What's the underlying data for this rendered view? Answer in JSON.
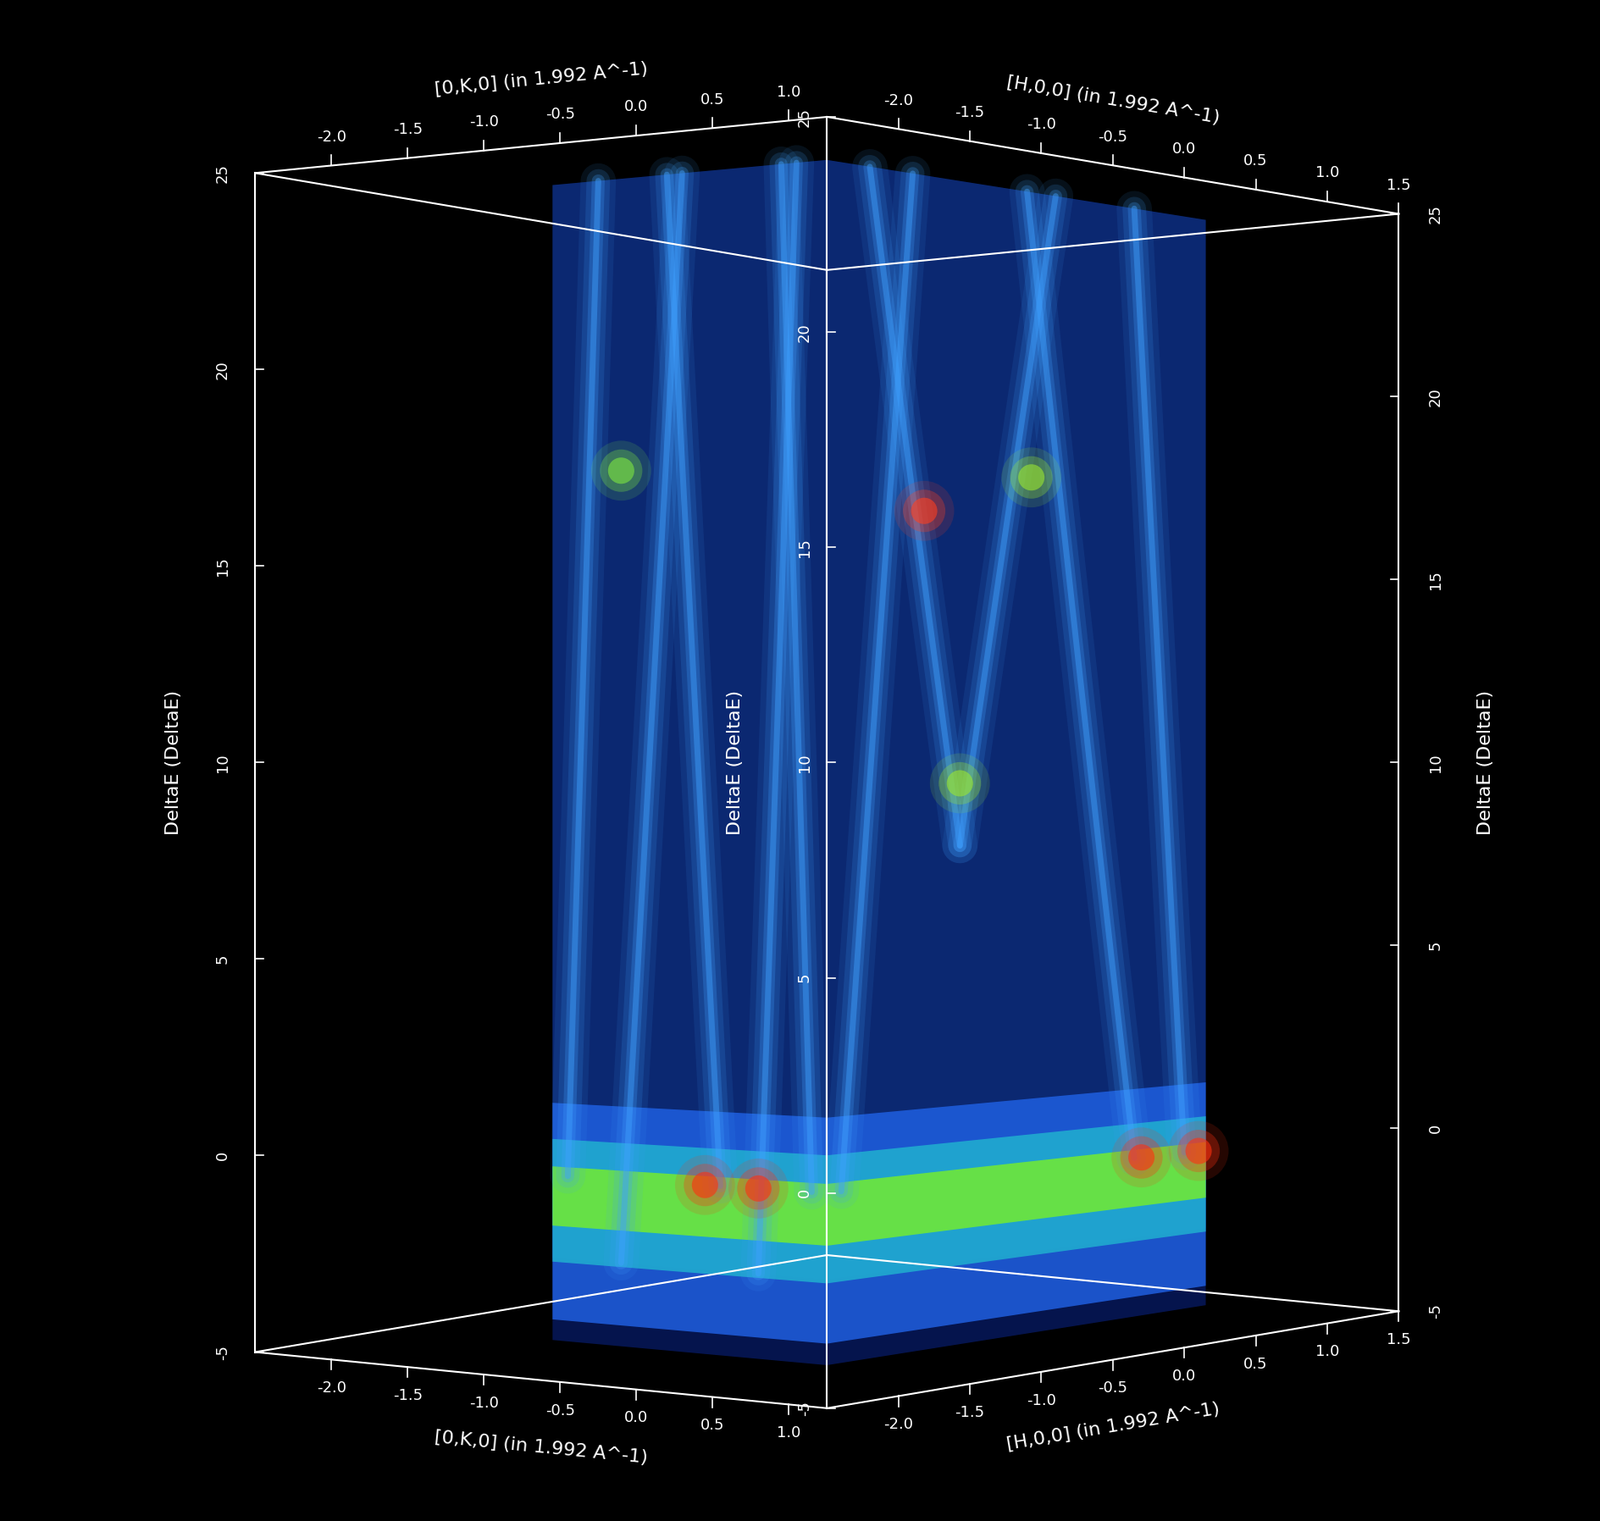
{
  "chart_data": {
    "type": "volume_3d",
    "xlabel": "[0,K,0] (in 1.992 A^-1)",
    "ylabel": "[H,0,0] (in 1.992 A^-1)",
    "zlabel": "DeltaE (DeltaE)",
    "xlim": [
      -2.5,
      1.25
    ],
    "xticks": [
      -2.0,
      -1.5,
      -1.0,
      -0.5,
      0.0,
      0.5,
      1.0
    ],
    "ylim": [
      -2.5,
      1.5
    ],
    "yticks": [
      -2.0,
      -1.5,
      -1.0,
      -0.5,
      0.0,
      0.5,
      1.0,
      1.5
    ],
    "zlim": [
      -5,
      25
    ],
    "zticks": [
      -5,
      0,
      5,
      10,
      15,
      20,
      25
    ],
    "data_extent": {
      "K": [
        -0.55,
        1.25
      ],
      "H": [
        -2.5,
        0.15
      ],
      "energy": [
        -4,
        24
      ]
    },
    "elastic_line": {
      "energy": 0,
      "width": 3.5
    },
    "dispersions": [
      {
        "face": "K",
        "points": [
          [
            -0.45,
            0
          ],
          [
            -0.25,
            24
          ]
        ]
      },
      {
        "face": "K",
        "points": [
          [
            -0.1,
            -2
          ],
          [
            0.3,
            24
          ]
        ]
      },
      {
        "face": "K",
        "points": [
          [
            0.55,
            0
          ],
          [
            0.2,
            24
          ]
        ]
      },
      {
        "face": "K",
        "points": [
          [
            0.8,
            -2
          ],
          [
            1.05,
            24
          ]
        ]
      },
      {
        "face": "K",
        "points": [
          [
            1.15,
            0
          ],
          [
            0.95,
            24
          ]
        ]
      },
      {
        "face": "H",
        "points": [
          [
            -1.57,
            8
          ],
          [
            -2.2,
            24
          ]
        ]
      },
      {
        "face": "H",
        "points": [
          [
            -1.57,
            8
          ],
          [
            -0.9,
            24
          ]
        ]
      },
      {
        "face": "H",
        "points": [
          [
            -0.35,
            0
          ],
          [
            -1.1,
            24
          ]
        ]
      },
      {
        "face": "H",
        "points": [
          [
            -2.4,
            0
          ],
          [
            -1.9,
            24
          ]
        ]
      },
      {
        "face": "H",
        "points": [
          [
            0.0,
            0
          ],
          [
            -0.35,
            24
          ]
        ]
      }
    ],
    "spots": [
      {
        "face": "K",
        "q": -0.1,
        "energy": 17,
        "color": "#7fe840"
      },
      {
        "face": "H",
        "q": -1.82,
        "energy": 16,
        "color": "#ff4020"
      },
      {
        "face": "H",
        "q": -1.07,
        "energy": 17,
        "color": "#9be830"
      },
      {
        "face": "H",
        "q": -1.57,
        "energy": 9.5,
        "color": "#9be830"
      },
      {
        "face": "K",
        "q": 0.45,
        "energy": 0,
        "color": "#ff3010"
      },
      {
        "face": "K",
        "q": 0.8,
        "energy": 0,
        "color": "#ff3010"
      },
      {
        "face": "H",
        "q": -0.3,
        "energy": 0,
        "color": "#ff3010"
      },
      {
        "face": "H",
        "q": 0.1,
        "energy": 0,
        "color": "#ff3010"
      }
    ]
  }
}
